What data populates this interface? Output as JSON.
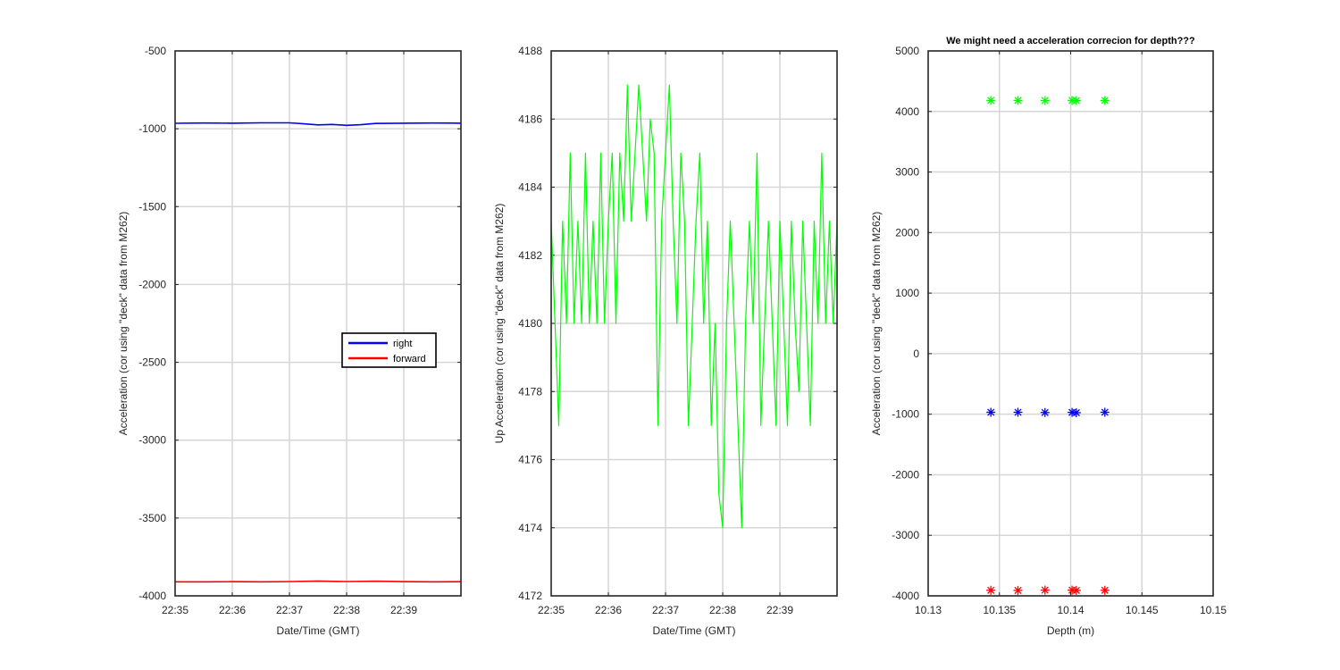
{
  "colors": {
    "right": "#0000ff",
    "forward": "#ff0000",
    "up": "#00ff00",
    "grid": "#d6d6d6",
    "axis": "#262626"
  },
  "chart_data": [
    {
      "type": "line",
      "title": "",
      "xlabel": "Date/Time (GMT)",
      "ylabel": "Acceleration (cor using \"deck\" data from M262)",
      "xlim": [
        "22:35",
        "22:40"
      ],
      "ylim": [
        -4000,
        -500
      ],
      "xticks": [
        "22:35",
        "22:36",
        "22:37",
        "22:38",
        "22:39"
      ],
      "yticks": [
        -4000,
        -3500,
        -3000,
        -2500,
        -2000,
        -1500,
        -1000,
        -500
      ],
      "grid": true,
      "legend": {
        "position": "center-right",
        "entries": [
          "right",
          "forward"
        ]
      },
      "series": [
        {
          "name": "right",
          "color": "#0000ff",
          "x": [
            "22:35:00",
            "22:35:30",
            "22:36:00",
            "22:36:30",
            "22:37:00",
            "22:37:15",
            "22:37:30",
            "22:37:45",
            "22:38:00",
            "22:38:15",
            "22:38:30",
            "22:39:00",
            "22:39:30",
            "22:40:00"
          ],
          "values": [
            -965,
            -963,
            -964,
            -962,
            -962,
            -968,
            -975,
            -972,
            -978,
            -974,
            -966,
            -964,
            -963,
            -964
          ]
        },
        {
          "name": "forward",
          "color": "#ff0000",
          "x": [
            "22:35:00",
            "22:35:30",
            "22:36:00",
            "22:36:30",
            "22:37:00",
            "22:37:30",
            "22:38:00",
            "22:38:30",
            "22:39:00",
            "22:39:30",
            "22:40:00"
          ],
          "values": [
            -3910,
            -3910,
            -3909,
            -3910,
            -3908,
            -3905,
            -3908,
            -3906,
            -3909,
            -3910,
            -3909
          ]
        }
      ]
    },
    {
      "type": "line",
      "title": "",
      "xlabel": "Date/Time (GMT)",
      "ylabel": "Up Acceleration (cor using \"deck\" data from M262)",
      "xlim": [
        "22:35",
        "22:40"
      ],
      "ylim": [
        4172,
        4188
      ],
      "xticks": [
        "22:35",
        "22:36",
        "22:37",
        "22:38",
        "22:39"
      ],
      "yticks": [
        4172,
        4174,
        4176,
        4178,
        4180,
        4182,
        4184,
        4186,
        4188
      ],
      "grid": true,
      "series": [
        {
          "color": "#00ff00",
          "x": [
            "22:35:00",
            "22:35:04",
            "22:35:08",
            "22:35:12",
            "22:35:16",
            "22:35:20",
            "22:35:24",
            "22:35:28",
            "22:35:32",
            "22:35:36",
            "22:35:40",
            "22:35:44",
            "22:35:48",
            "22:35:52",
            "22:35:56",
            "22:36:00",
            "22:36:04",
            "22:36:08",
            "22:36:12",
            "22:36:16",
            "22:36:20",
            "22:36:24",
            "22:36:28",
            "22:36:32",
            "22:36:36",
            "22:36:40",
            "22:36:44",
            "22:36:48",
            "22:36:52",
            "22:36:56",
            "22:37:00",
            "22:37:04",
            "22:37:08",
            "22:37:12",
            "22:37:16",
            "22:37:20",
            "22:37:24",
            "22:37:28",
            "22:37:32",
            "22:37:36",
            "22:37:40",
            "22:37:44",
            "22:37:48",
            "22:37:52",
            "22:37:56",
            "22:38:00",
            "22:38:04",
            "22:38:08",
            "22:38:12",
            "22:38:16",
            "22:38:20",
            "22:38:24",
            "22:38:28",
            "22:38:32",
            "22:38:36",
            "22:38:40",
            "22:38:44",
            "22:38:48",
            "22:38:52",
            "22:38:56",
            "22:39:00",
            "22:39:04",
            "22:39:08",
            "22:39:12",
            "22:39:16",
            "22:39:20",
            "22:39:24",
            "22:39:28",
            "22:39:32",
            "22:39:36",
            "22:39:40",
            "22:39:44",
            "22:39:48",
            "22:39:52",
            "22:39:56",
            "22:40:00"
          ],
          "values": [
            4183,
            4180,
            4177,
            4183,
            4180,
            4185,
            4180,
            4183,
            4180,
            4185,
            4180,
            4183,
            4180,
            4185,
            4180,
            4183,
            4185,
            4180,
            4185,
            4183,
            4187,
            4183,
            4185,
            4187,
            4185,
            4183,
            4186,
            4185,
            4177,
            4183,
            4185,
            4187,
            4183,
            4180,
            4185,
            4183,
            4177,
            4180,
            4183,
            4185,
            4180,
            4183,
            4177,
            4180,
            4175,
            4174,
            4180,
            4183,
            4180,
            4177,
            4174,
            4180,
            4183,
            4180,
            4185,
            4177,
            4180,
            4183,
            4180,
            4177,
            4183,
            4180,
            4177,
            4183,
            4180,
            4178,
            4183,
            4180,
            4177,
            4183,
            4180,
            4185,
            4180,
            4183,
            4180,
            4183
          ]
        }
      ]
    },
    {
      "type": "scatter",
      "title": "We might need a acceleration correcion for depth???",
      "xlabel": "Depth (m)",
      "ylabel": "Acceleration (cor using \"deck\" data from M262)",
      "xlim": [
        10.13,
        10.15
      ],
      "ylim": [
        -4000,
        5000
      ],
      "xticks": [
        "10.13",
        "10.135",
        "10.14",
        "10.145",
        "10.15"
      ],
      "yticks": [
        "-4000",
        "-3000",
        "-2000",
        "-1000",
        "0",
        "1000",
        "2000",
        "3000",
        "4000",
        "5000"
      ],
      "grid": true,
      "marker": "*",
      "series": [
        {
          "color": "#00ff00",
          "x": [
            10.1344,
            10.1363,
            10.1382,
            10.1401,
            10.1404,
            10.1424
          ],
          "values": [
            4182,
            4182,
            4180,
            4182,
            4180,
            4182
          ]
        },
        {
          "color": "#0000ff",
          "x": [
            10.1344,
            10.1363,
            10.1382,
            10.1401,
            10.1404,
            10.1424
          ],
          "values": [
            -968,
            -968,
            -972,
            -970,
            -975,
            -968
          ]
        },
        {
          "color": "#ff0000",
          "x": [
            10.1344,
            10.1363,
            10.1382,
            10.1401,
            10.1404,
            10.1424
          ],
          "values": [
            -3908,
            -3910,
            -3905,
            -3906,
            -3910,
            -3908
          ]
        }
      ]
    }
  ]
}
